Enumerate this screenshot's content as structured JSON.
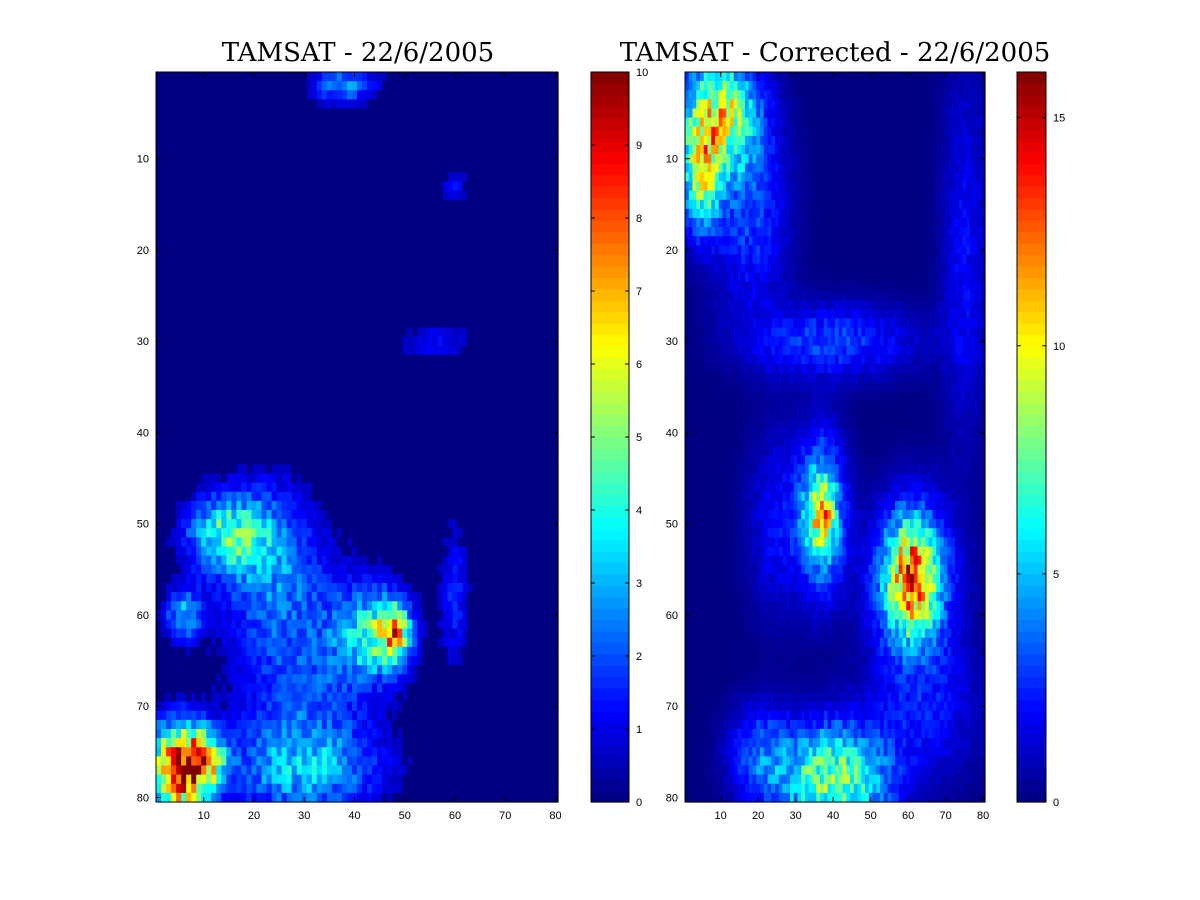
{
  "colors": {
    "background": "#ffffff",
    "axis": "#000000",
    "colormap": "jet",
    "jet_stops": [
      "#00008f",
      "#0000ff",
      "#00ffff",
      "#ffff00",
      "#ff0000",
      "#800000"
    ]
  },
  "chart_data": [
    {
      "type": "heatmap",
      "title": "TAMSAT - 22/6/2005",
      "xlabel": "",
      "ylabel": "",
      "xlim": [
        1,
        80
      ],
      "ylim": [
        1,
        80
      ],
      "y_reversed": true,
      "x_ticks": [
        "10",
        "20",
        "30",
        "40",
        "50",
        "60",
        "70",
        "80"
      ],
      "y_ticks": [
        "10",
        "20",
        "30",
        "40",
        "50",
        "60",
        "70",
        "80"
      ],
      "colorbar": {
        "range": [
          0,
          10
        ],
        "ticks": [
          "0",
          "1",
          "2",
          "3",
          "4",
          "5",
          "6",
          "7",
          "8",
          "9",
          "10"
        ]
      },
      "blobs": [
        {
          "x": 38,
          "y": 2,
          "rx": 7,
          "ry": 2,
          "v": 2.5
        },
        {
          "x": 14,
          "y": 51,
          "rx": 8,
          "ry": 4,
          "v": 3.4
        },
        {
          "x": 22,
          "y": 53,
          "rx": 10,
          "ry": 8,
          "v": 2.2
        },
        {
          "x": 44,
          "y": 62,
          "rx": 7,
          "ry": 5,
          "v": 3.5
        },
        {
          "x": 48,
          "y": 62,
          "rx": 3,
          "ry": 3,
          "v": 4.8
        },
        {
          "x": 30,
          "y": 66,
          "rx": 14,
          "ry": 12,
          "v": 2.0
        },
        {
          "x": 6,
          "y": 60,
          "rx": 4,
          "ry": 3,
          "v": 2.8
        },
        {
          "x": 5,
          "y": 77,
          "rx": 6,
          "ry": 5,
          "v": 8.0
        },
        {
          "x": 10,
          "y": 76,
          "rx": 4,
          "ry": 3,
          "v": 4.5
        },
        {
          "x": 30,
          "y": 77,
          "rx": 16,
          "ry": 5,
          "v": 2.5
        },
        {
          "x": 60,
          "y": 58,
          "rx": 3,
          "ry": 8,
          "v": 1.5
        },
        {
          "x": 60,
          "y": 13,
          "rx": 3,
          "ry": 2,
          "v": 1.2
        },
        {
          "x": 56,
          "y": 30,
          "rx": 8,
          "ry": 2,
          "v": 1.2
        }
      ]
    },
    {
      "type": "heatmap",
      "title": "TAMSAT - Corrected - 22/6/2005",
      "xlabel": "",
      "ylabel": "",
      "xlim": [
        1,
        80
      ],
      "ylim": [
        1,
        80
      ],
      "y_reversed": true,
      "x_ticks": [
        "10",
        "20",
        "30",
        "40",
        "50",
        "60",
        "70",
        "80"
      ],
      "y_ticks": [
        "10",
        "20",
        "30",
        "40",
        "50",
        "60",
        "70",
        "80"
      ],
      "colorbar": {
        "range": [
          0,
          16
        ],
        "ticks": [
          "0",
          "5",
          "10",
          "15"
        ]
      },
      "blobs": [
        {
          "x": 10,
          "y": 5,
          "rx": 10,
          "ry": 6,
          "v": 9.0
        },
        {
          "x": 5,
          "y": 12,
          "rx": 5,
          "ry": 6,
          "v": 8.0
        },
        {
          "x": 18,
          "y": 16,
          "rx": 10,
          "ry": 10,
          "v": 3.0
        },
        {
          "x": 40,
          "y": 30,
          "rx": 22,
          "ry": 4,
          "v": 3.0
        },
        {
          "x": 37,
          "y": 49,
          "rx": 6,
          "ry": 8,
          "v": 7.0
        },
        {
          "x": 37,
          "y": 49,
          "rx": 3,
          "ry": 3,
          "v": 5.0
        },
        {
          "x": 61,
          "y": 56,
          "rx": 10,
          "ry": 8,
          "v": 8.0
        },
        {
          "x": 61,
          "y": 56,
          "rx": 5,
          "ry": 5,
          "v": 6.0
        },
        {
          "x": 25,
          "y": 50,
          "rx": 8,
          "ry": 10,
          "v": 2.0
        },
        {
          "x": 65,
          "y": 70,
          "rx": 15,
          "ry": 8,
          "v": 2.0
        },
        {
          "x": 40,
          "y": 78,
          "rx": 15,
          "ry": 6,
          "v": 8.0
        },
        {
          "x": 20,
          "y": 75,
          "rx": 8,
          "ry": 5,
          "v": 3.0
        },
        {
          "x": 75,
          "y": 20,
          "rx": 6,
          "ry": 20,
          "v": 2.0
        }
      ]
    }
  ]
}
